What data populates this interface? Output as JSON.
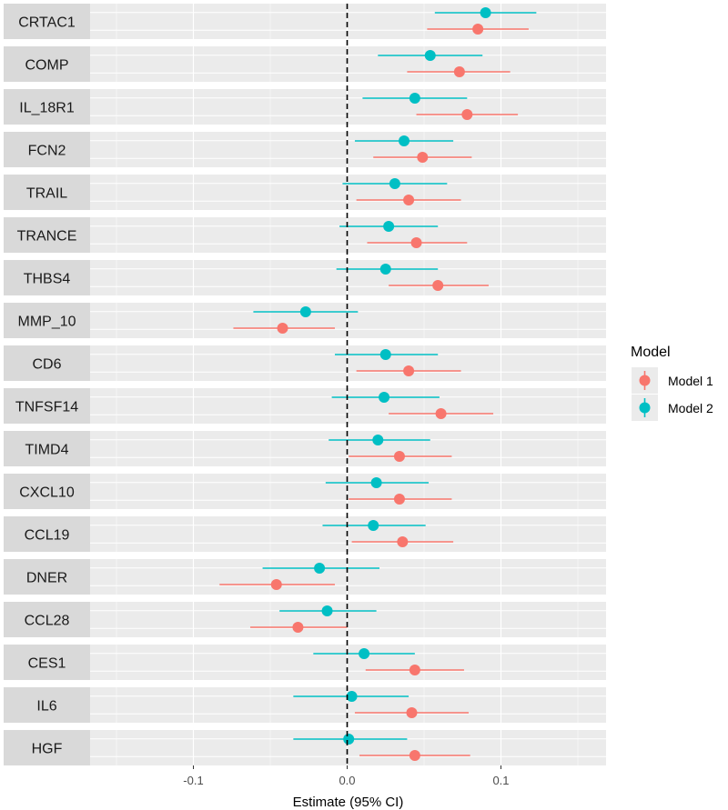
{
  "chart_data": {
    "type": "forest",
    "xlabel": "Estimate (95% CI)",
    "xlim": [
      -0.165,
      0.165
    ],
    "xticks": [
      -0.1,
      0.0,
      0.1
    ],
    "xtick_labels": [
      "-0.1",
      "0.0",
      "0.1"
    ],
    "reference_line": 0,
    "legend": {
      "title": "Model",
      "placement": "right",
      "entries": [
        {
          "name": "Model 1",
          "color": "#F8766D"
        },
        {
          "name": "Model 2",
          "color": "#00BFC4"
        }
      ]
    },
    "panels": [
      {
        "label": "CRTAC1",
        "model1": {
          "est": 0.085,
          "lo": 0.052,
          "hi": 0.118
        },
        "model2": {
          "est": 0.09,
          "lo": 0.057,
          "hi": 0.123
        }
      },
      {
        "label": "COMP",
        "model1": {
          "est": 0.073,
          "lo": 0.039,
          "hi": 0.106
        },
        "model2": {
          "est": 0.054,
          "lo": 0.02,
          "hi": 0.088
        }
      },
      {
        "label": "IL_18R1",
        "model1": {
          "est": 0.078,
          "lo": 0.045,
          "hi": 0.111
        },
        "model2": {
          "est": 0.044,
          "lo": 0.01,
          "hi": 0.078
        }
      },
      {
        "label": "FCN2",
        "model1": {
          "est": 0.049,
          "lo": 0.017,
          "hi": 0.081
        },
        "model2": {
          "est": 0.037,
          "lo": 0.005,
          "hi": 0.069
        }
      },
      {
        "label": "TRAIL",
        "model1": {
          "est": 0.04,
          "lo": 0.006,
          "hi": 0.074
        },
        "model2": {
          "est": 0.031,
          "lo": -0.003,
          "hi": 0.065
        }
      },
      {
        "label": "TRANCE",
        "model1": {
          "est": 0.045,
          "lo": 0.013,
          "hi": 0.078
        },
        "model2": {
          "est": 0.027,
          "lo": -0.005,
          "hi": 0.059
        }
      },
      {
        "label": "THBS4",
        "model1": {
          "est": 0.059,
          "lo": 0.027,
          "hi": 0.092
        },
        "model2": {
          "est": 0.025,
          "lo": -0.007,
          "hi": 0.059
        }
      },
      {
        "label": "MMP_10",
        "model1": {
          "est": -0.042,
          "lo": -0.074,
          "hi": -0.008
        },
        "model2": {
          "est": -0.027,
          "lo": -0.061,
          "hi": 0.007
        }
      },
      {
        "label": "CD6",
        "model1": {
          "est": 0.04,
          "lo": 0.006,
          "hi": 0.074
        },
        "model2": {
          "est": 0.025,
          "lo": -0.008,
          "hi": 0.059
        }
      },
      {
        "label": "TNFSF14",
        "model1": {
          "est": 0.061,
          "lo": 0.027,
          "hi": 0.095
        },
        "model2": {
          "est": 0.024,
          "lo": -0.01,
          "hi": 0.06
        }
      },
      {
        "label": "TIMD4",
        "model1": {
          "est": 0.034,
          "lo": 0.001,
          "hi": 0.068
        },
        "model2": {
          "est": 0.02,
          "lo": -0.012,
          "hi": 0.054
        }
      },
      {
        "label": "CXCL10",
        "model1": {
          "est": 0.034,
          "lo": 0.001,
          "hi": 0.068
        },
        "model2": {
          "est": 0.019,
          "lo": -0.014,
          "hi": 0.053
        }
      },
      {
        "label": "CCL19",
        "model1": {
          "est": 0.036,
          "lo": 0.003,
          "hi": 0.069
        },
        "model2": {
          "est": 0.017,
          "lo": -0.016,
          "hi": 0.051
        }
      },
      {
        "label": "DNER",
        "model1": {
          "est": -0.046,
          "lo": -0.083,
          "hi": -0.008
        },
        "model2": {
          "est": -0.018,
          "lo": -0.055,
          "hi": 0.021
        }
      },
      {
        "label": "CCL28",
        "model1": {
          "est": -0.032,
          "lo": -0.063,
          "hi": 0.0
        },
        "model2": {
          "est": -0.013,
          "lo": -0.044,
          "hi": 0.019
        }
      },
      {
        "label": "CES1",
        "model1": {
          "est": 0.044,
          "lo": 0.012,
          "hi": 0.076
        },
        "model2": {
          "est": 0.011,
          "lo": -0.022,
          "hi": 0.044
        }
      },
      {
        "label": "IL6",
        "model1": {
          "est": 0.042,
          "lo": 0.005,
          "hi": 0.079
        },
        "model2": {
          "est": 0.003,
          "lo": -0.035,
          "hi": 0.04
        }
      },
      {
        "label": "HGF",
        "model1": {
          "est": 0.044,
          "lo": 0.008,
          "hi": 0.08
        },
        "model2": {
          "est": 0.001,
          "lo": -0.035,
          "hi": 0.039
        }
      }
    ]
  }
}
